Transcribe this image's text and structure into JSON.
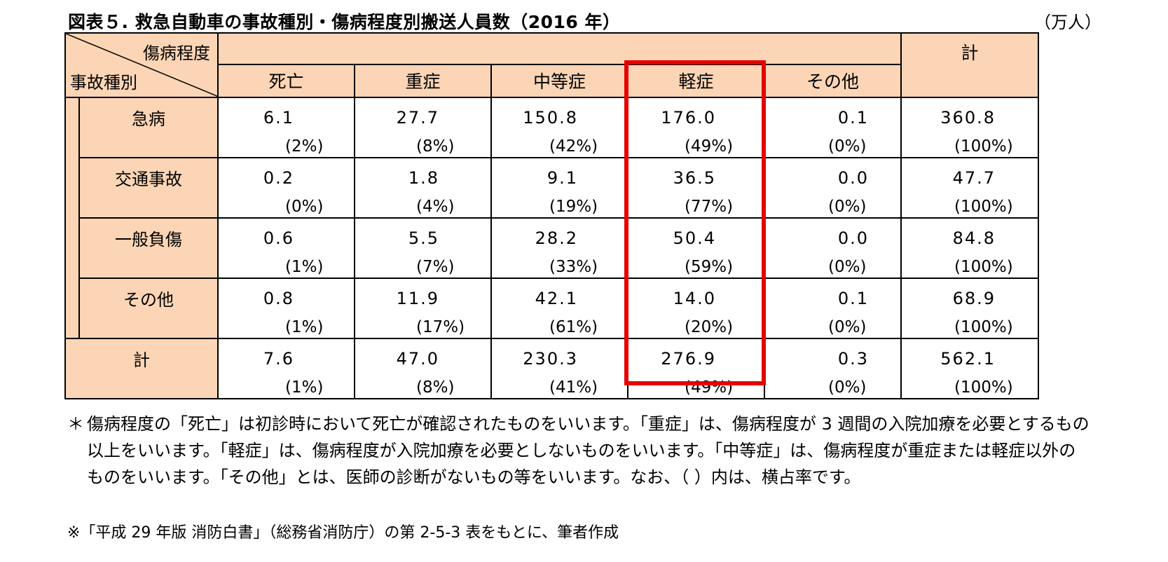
{
  "title": "図表５. 救急自動車の事故種別・傷病程度別搬送人員数（2016 年）",
  "unit": "（万人）",
  "chart_data": {
    "type": "table",
    "corner_top_label": "傷病程度",
    "corner_bottom_label": "事故種別",
    "columns": [
      "死亡",
      "重症",
      "中等症",
      "軽症",
      "その他"
    ],
    "total_label": "計",
    "rows": [
      {
        "label": "急病",
        "values": [
          "6.1",
          "27.7",
          "150.8",
          "176.0",
          "0.1",
          "360.8"
        ],
        "shares": [
          "(2%)",
          "(8%)",
          "(42%)",
          "(49%)",
          "(0%)",
          "(100%)"
        ]
      },
      {
        "label": "交通事故",
        "values": [
          "0.2",
          "1.8",
          "9.1",
          "36.5",
          "0.0",
          "47.7"
        ],
        "shares": [
          "(0%)",
          "(4%)",
          "(19%)",
          "(77%)",
          "(0%)",
          "(100%)"
        ]
      },
      {
        "label": "一般負傷",
        "values": [
          "0.6",
          "5.5",
          "28.2",
          "50.4",
          "0.0",
          "84.8"
        ],
        "shares": [
          "(1%)",
          "(7%)",
          "(33%)",
          "(59%)",
          "(0%)",
          "(100%)"
        ]
      },
      {
        "label": "その他",
        "values": [
          "0.8",
          "11.9",
          "42.1",
          "14.0",
          "0.1",
          "68.9"
        ],
        "shares": [
          "(1%)",
          "(17%)",
          "(61%)",
          "(20%)",
          "(0%)",
          "(100%)"
        ]
      },
      {
        "label": "計",
        "values": [
          "7.6",
          "47.0",
          "230.3",
          "276.9",
          "0.3",
          "562.1"
        ],
        "shares": [
          "(1%)",
          "(8%)",
          "(41%)",
          "(49%)",
          "(0%)",
          "(100%)"
        ]
      }
    ],
    "highlighted_column": "軽症",
    "highlight_color": "#e60000",
    "header_color": "#fbd5b5"
  },
  "note": {
    "mark": "＊",
    "text": "傷病程度の「死亡」は初診時において死亡が確認されたものをいいます。「重症」は、傷病程度が 3 週間の入院加療を必要とするもの以上をいいます。「軽症」は、傷病程度が入院加療を必要としないものをいいます。「中等症」は、傷病程度が重症または軽症以外のものをいいます。「その他」とは、医師の診断がないもの等をいいます。なお、（ ）内は、横占率です。"
  },
  "source": "※「平成 29 年版 消防白書」（総務省消防庁）の第 2-5-3 表をもとに、筆者作成"
}
